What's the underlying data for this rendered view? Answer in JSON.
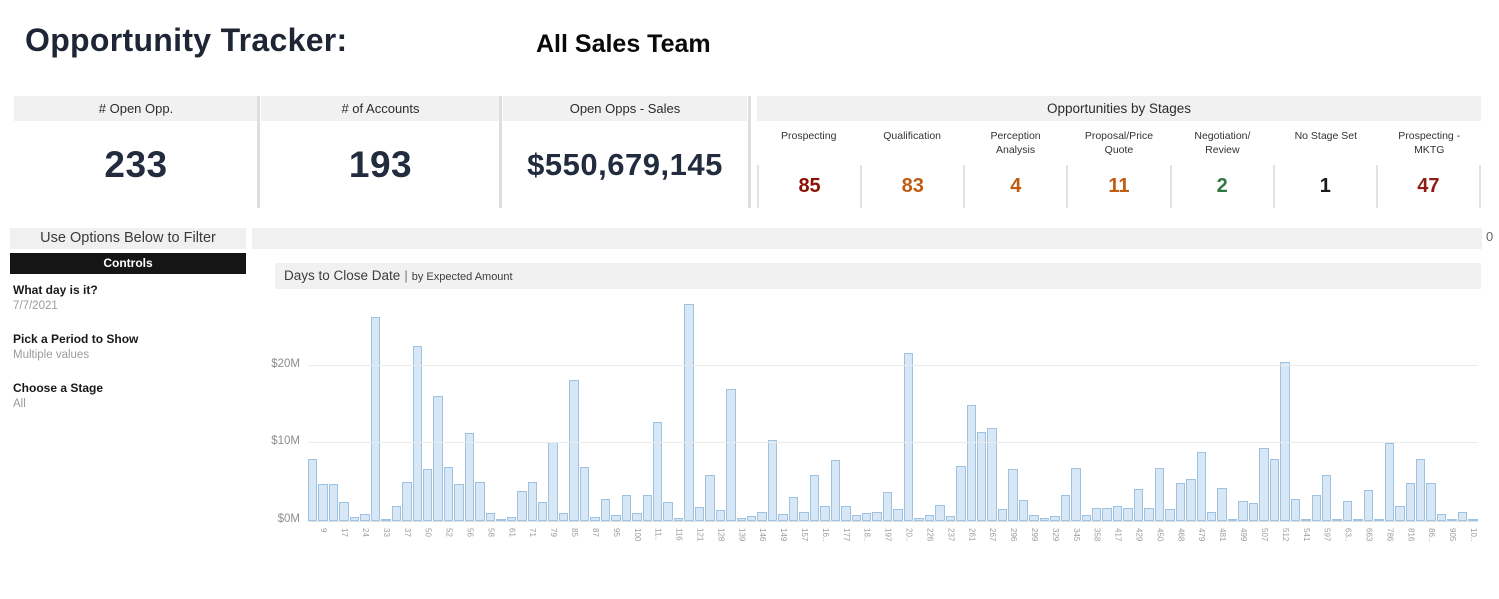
{
  "header": {
    "title": "Opportunity Tracker:",
    "team": "All Sales Team"
  },
  "kpis": [
    {
      "label": "# Open Opp.",
      "value": "233"
    },
    {
      "label": "# of Accounts",
      "value": "193"
    },
    {
      "label": "Open Opps - Sales",
      "value": "$550,679,145"
    }
  ],
  "stages_panel": {
    "title": "Opportunities by Stages",
    "stages": [
      {
        "name": "Prospecting",
        "value": "85",
        "color": "#8c1004"
      },
      {
        "name": "Qualification",
        "value": "83",
        "color": "#c05d12"
      },
      {
        "name": "Perception\nAnalysis",
        "value": "4",
        "color": "#c05a11"
      },
      {
        "name": "Proposal/Price\nQuote",
        "value": "11",
        "color": "#c05d12"
      },
      {
        "name": "Negotiation/\nReview",
        "value": "2",
        "color": "#30793f"
      },
      {
        "name": "No Stage Set",
        "value": "1",
        "color": "#1b1b1b"
      },
      {
        "name": "Prospecting -\nMKTG",
        "value": "47",
        "color": "#8e1d13"
      }
    ]
  },
  "filter_panel": {
    "header": "Use Options Below to Filter",
    "controls_title": "Controls",
    "filters": [
      {
        "label": "What day is it?",
        "value": "7/7/2021"
      },
      {
        "label": "Pick a Period to Show",
        "value": "Multiple values"
      },
      {
        "label": "Choose a Stage",
        "value": "All"
      }
    ]
  },
  "misc": {
    "corner_text": "0"
  },
  "chart_data": {
    "type": "bar",
    "title": "Days to Close Date",
    "separator": "|",
    "subtitle": "by Expected Amount",
    "xlabel": "Days to Close Date",
    "ylabel": "Expected Amount",
    "ylim": [
      0,
      29.1
    ],
    "grid": true,
    "bar_fill": "#d7e7f6",
    "bar_stroke": "#9dc2e2",
    "yticks": [
      {
        "label": "$0M",
        "value": 0
      },
      {
        "label": "$10M",
        "value": 10
      },
      {
        "label": "$20M",
        "value": 20
      }
    ],
    "label_note": "x labels appear under every second bar, values in $M",
    "x_labels": [
      "9",
      "17",
      "24",
      "33",
      "37",
      "50",
      "52",
      "56",
      "58",
      "61",
      "71",
      "79",
      "85",
      "87",
      "95",
      "100",
      "11..",
      "116",
      "121",
      "128",
      "139",
      "146",
      "149",
      "157",
      "16..",
      "177",
      "18..",
      "197",
      "20..",
      "226",
      "237",
      "261",
      "267",
      "296",
      "299",
      "329",
      "345",
      "358",
      "417",
      "429",
      "450",
      "468",
      "479",
      "481",
      "499",
      "507",
      "512",
      "541",
      "597",
      "63..",
      "663",
      "786",
      "816",
      "86..",
      "905",
      "10.."
    ],
    "values": [
      8.0,
      4.8,
      4.8,
      2.4,
      0.5,
      0.9,
      26.3,
      0.2,
      1.9,
      5.0,
      22.6,
      6.7,
      16.1,
      7.0,
      4.8,
      11.4,
      5.0,
      1.0,
      0.3,
      0.5,
      3.9,
      5.0,
      2.5,
      10.2,
      1.0,
      18.2,
      7.0,
      0.5,
      2.8,
      0.8,
      3.4,
      1.0,
      3.3,
      12.8,
      2.5,
      0.4,
      28.0,
      1.8,
      5.9,
      1.4,
      17.0,
      0.4,
      0.7,
      1.2,
      10.5,
      0.9,
      3.1,
      1.2,
      5.9,
      1.9,
      7.9,
      1.9,
      0.8,
      1.0,
      1.2,
      3.8,
      1.6,
      21.6,
      0.4,
      0.8,
      2.1,
      0.7,
      7.1,
      14.9,
      11.5,
      12.0,
      1.6,
      6.7,
      2.7,
      0.8,
      0.4,
      0.6,
      3.4,
      6.8,
      0.8,
      1.7,
      1.7,
      2.0,
      1.7,
      4.1,
      1.7,
      6.8,
      1.5,
      4.9,
      5.4,
      8.9,
      1.2,
      4.3,
      0.3,
      2.6,
      2.3,
      9.4,
      8.0,
      20.5,
      2.8,
      0.1,
      3.3,
      5.9,
      0.1,
      2.6,
      0.1,
      4.0,
      0.2,
      10.1,
      1.9,
      4.9,
      8.0,
      4.9,
      0.9,
      0.3,
      1.2,
      0.3
    ]
  }
}
